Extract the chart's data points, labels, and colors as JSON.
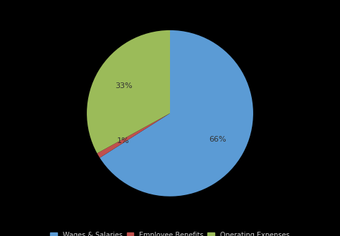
{
  "labels": [
    "Wages & Salaries",
    "Employee Benefits",
    "Operating Expenses"
  ],
  "values": [
    66,
    1,
    33
  ],
  "colors": [
    "#5b9bd5",
    "#c0504d",
    "#9bbb59"
  ],
  "background_color": "#000000",
  "text_color": "#333333",
  "legend_fontsize": 7,
  "startangle": 90,
  "pctdistance": 0.65,
  "figsize": [
    4.82,
    3.35
  ],
  "dpi": 100
}
